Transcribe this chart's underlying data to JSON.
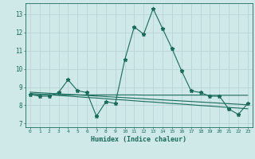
{
  "xlabel": "Humidex (Indice chaleur)",
  "background_color": "#cfe8e8",
  "grid_color": "#b8d4d4",
  "line_color": "#1a6b5a",
  "xlim": [
    -0.5,
    23.5
  ],
  "ylim": [
    6.8,
    13.6
  ],
  "yticks": [
    7,
    8,
    9,
    10,
    11,
    12,
    13
  ],
  "xticks": [
    0,
    1,
    2,
    3,
    4,
    5,
    6,
    7,
    8,
    9,
    10,
    11,
    12,
    13,
    14,
    15,
    16,
    17,
    18,
    19,
    20,
    21,
    22,
    23
  ],
  "main_line": [
    8.6,
    8.5,
    8.5,
    8.7,
    9.4,
    8.8,
    8.7,
    7.4,
    8.2,
    8.1,
    10.5,
    12.3,
    11.9,
    13.3,
    12.2,
    11.1,
    9.9,
    8.8,
    8.7,
    8.5,
    8.5,
    7.8,
    7.5,
    8.1
  ],
  "trend_lines": [
    [
      8.65,
      8.61,
      8.58,
      8.54,
      8.51,
      8.47,
      8.43,
      8.4,
      8.36,
      8.32,
      8.29,
      8.25,
      8.21,
      8.18,
      8.14,
      8.1,
      8.07,
      8.03,
      7.99,
      7.96,
      7.92,
      7.88,
      7.85,
      7.81
    ],
    [
      8.58,
      8.58,
      8.58,
      8.58,
      8.58,
      8.57,
      8.57,
      8.57,
      8.57,
      8.57,
      8.57,
      8.57,
      8.56,
      8.56,
      8.56,
      8.56,
      8.56,
      8.56,
      8.56,
      8.55,
      8.55,
      8.55,
      8.55,
      8.55
    ],
    [
      8.72,
      8.69,
      8.66,
      8.63,
      8.6,
      8.57,
      8.54,
      8.51,
      8.48,
      8.45,
      8.42,
      8.39,
      8.36,
      8.33,
      8.3,
      8.27,
      8.24,
      8.21,
      8.18,
      8.15,
      8.12,
      8.09,
      8.06,
      8.03
    ]
  ]
}
